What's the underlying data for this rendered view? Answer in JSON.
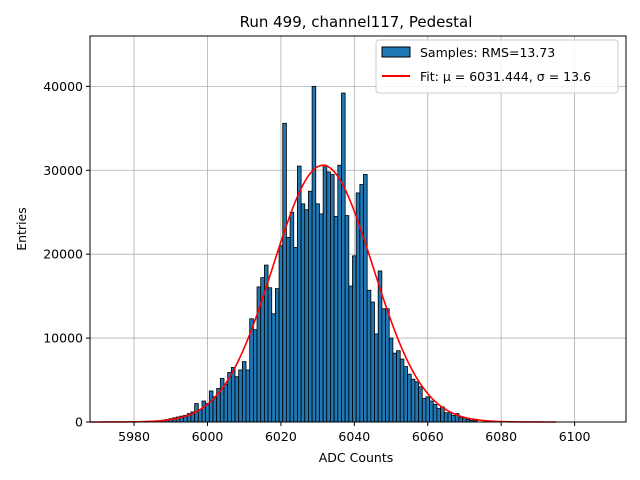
{
  "colors": {
    "bar_fill": "#1f77b4",
    "bar_edge": "#000000",
    "fit_line": "#ff0000",
    "grid": "#b0b0b0",
    "legend_edge": "#cccccc"
  },
  "chart_data": {
    "type": "bar",
    "title": "Run 499, channel117, Pedestal",
    "xlabel": "ADC Counts",
    "ylabel": "Entries",
    "xlim": [
      5968,
      6114
    ],
    "ylim": [
      0,
      46000
    ],
    "x_ticks": [
      5980,
      6000,
      6020,
      6040,
      6060,
      6080,
      6100
    ],
    "y_ticks": [
      0,
      10000,
      20000,
      30000,
      40000
    ],
    "grid": true,
    "legend_position": "top-right",
    "series": [
      {
        "name": "Samples: RMS=13.73",
        "kind": "histogram",
        "bins": [
          {
            "x": 5988,
            "y": 200
          },
          {
            "x": 5989,
            "y": 300
          },
          {
            "x": 5990,
            "y": 400
          },
          {
            "x": 5991,
            "y": 500
          },
          {
            "x": 5992,
            "y": 600
          },
          {
            "x": 5993,
            "y": 700
          },
          {
            "x": 5994,
            "y": 800
          },
          {
            "x": 5995,
            "y": 1000
          },
          {
            "x": 5996,
            "y": 1200
          },
          {
            "x": 5997,
            "y": 2200
          },
          {
            "x": 5998,
            "y": 1500
          },
          {
            "x": 5999,
            "y": 2500
          },
          {
            "x": 6000,
            "y": 2200
          },
          {
            "x": 6001,
            "y": 3700
          },
          {
            "x": 6002,
            "y": 3000
          },
          {
            "x": 6003,
            "y": 4000
          },
          {
            "x": 6004,
            "y": 5200
          },
          {
            "x": 6005,
            "y": 4500
          },
          {
            "x": 6006,
            "y": 5900
          },
          {
            "x": 6007,
            "y": 6500
          },
          {
            "x": 6008,
            "y": 5400
          },
          {
            "x": 6009,
            "y": 6200
          },
          {
            "x": 6010,
            "y": 7200
          },
          {
            "x": 6011,
            "y": 6200
          },
          {
            "x": 6012,
            "y": 12300
          },
          {
            "x": 6013,
            "y": 11000
          },
          {
            "x": 6014,
            "y": 16100
          },
          {
            "x": 6015,
            "y": 17200
          },
          {
            "x": 6016,
            "y": 18700
          },
          {
            "x": 6017,
            "y": 16000
          },
          {
            "x": 6018,
            "y": 12900
          },
          {
            "x": 6019,
            "y": 15900
          },
          {
            "x": 6020,
            "y": 21000
          },
          {
            "x": 6021,
            "y": 35600
          },
          {
            "x": 6022,
            "y": 22000
          },
          {
            "x": 6023,
            "y": 25000
          },
          {
            "x": 6024,
            "y": 20800
          },
          {
            "x": 6025,
            "y": 30500
          },
          {
            "x": 6026,
            "y": 26000
          },
          {
            "x": 6027,
            "y": 25300
          },
          {
            "x": 6028,
            "y": 27500
          },
          {
            "x": 6029,
            "y": 40000
          },
          {
            "x": 6030,
            "y": 26000
          },
          {
            "x": 6031,
            "y": 24800
          },
          {
            "x": 6032,
            "y": 30600
          },
          {
            "x": 6033,
            "y": 29800
          },
          {
            "x": 6034,
            "y": 29500
          },
          {
            "x": 6035,
            "y": 24500
          },
          {
            "x": 6036,
            "y": 30600
          },
          {
            "x": 6037,
            "y": 39200
          },
          {
            "x": 6038,
            "y": 24600
          },
          {
            "x": 6039,
            "y": 16200
          },
          {
            "x": 6040,
            "y": 19800
          },
          {
            "x": 6041,
            "y": 27300
          },
          {
            "x": 6042,
            "y": 28300
          },
          {
            "x": 6043,
            "y": 29500
          },
          {
            "x": 6044,
            "y": 15700
          },
          {
            "x": 6045,
            "y": 14300
          },
          {
            "x": 6046,
            "y": 10500
          },
          {
            "x": 6047,
            "y": 18000
          },
          {
            "x": 6048,
            "y": 13500
          },
          {
            "x": 6049,
            "y": 13500
          },
          {
            "x": 6050,
            "y": 10000
          },
          {
            "x": 6051,
            "y": 8200
          },
          {
            "x": 6052,
            "y": 8500
          },
          {
            "x": 6053,
            "y": 7500
          },
          {
            "x": 6054,
            "y": 6600
          },
          {
            "x": 6055,
            "y": 5700
          },
          {
            "x": 6056,
            "y": 5100
          },
          {
            "x": 6057,
            "y": 4800
          },
          {
            "x": 6058,
            "y": 4200
          },
          {
            "x": 6059,
            "y": 2800
          },
          {
            "x": 6060,
            "y": 3000
          },
          {
            "x": 6061,
            "y": 2500
          },
          {
            "x": 6062,
            "y": 2100
          },
          {
            "x": 6063,
            "y": 1600
          },
          {
            "x": 6064,
            "y": 1800
          },
          {
            "x": 6065,
            "y": 1100
          },
          {
            "x": 6066,
            "y": 1100
          },
          {
            "x": 6067,
            "y": 800
          },
          {
            "x": 6068,
            "y": 1000
          },
          {
            "x": 6069,
            "y": 600
          },
          {
            "x": 6070,
            "y": 500
          },
          {
            "x": 6071,
            "y": 300
          },
          {
            "x": 6072,
            "y": 200
          },
          {
            "x": 6073,
            "y": 150
          }
        ]
      },
      {
        "name": "Fit: μ = 6031.444, σ = 13.6",
        "kind": "gaussian_fit",
        "mu": 6031.444,
        "sigma": 13.6,
        "amplitude": 30600,
        "x_range": [
          5968,
          6095
        ]
      }
    ]
  }
}
